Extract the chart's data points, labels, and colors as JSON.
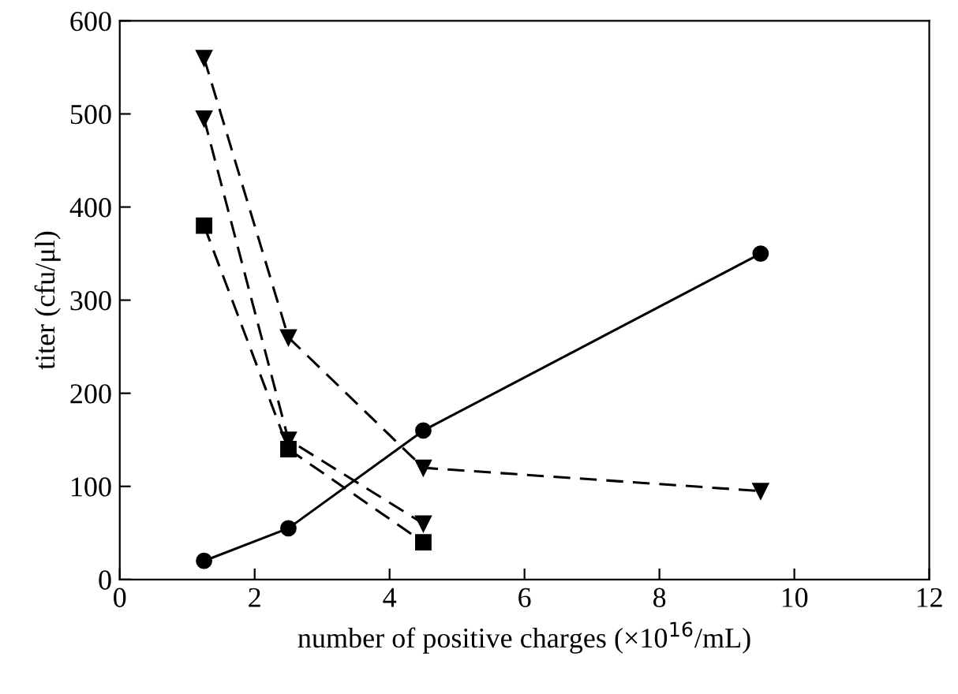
{
  "chart_data": {
    "type": "line",
    "xlabel": "number of positive charges (×10$^{16}$/mL)",
    "ylabel": "titer (cfu/μl)",
    "xlim": [
      0,
      12
    ],
    "xticks": [
      0,
      2,
      4,
      6,
      8,
      10,
      12
    ],
    "ylim": [
      0,
      600
    ],
    "yticks": [
      0,
      100,
      200,
      300,
      400,
      500,
      600
    ],
    "grid": false,
    "legend": false,
    "series": [
      {
        "x": [
          1.25,
          2.5,
          4.5,
          9.5
        ],
        "values": [
          20,
          55,
          160,
          350
        ],
        "color": "#000000",
        "marker": "circle",
        "line_style": "solid"
      },
      {
        "x": [
          1.25,
          2.5,
          4.5,
          9.5
        ],
        "values": [
          560,
          260,
          120,
          95
        ],
        "color": "#000000",
        "marker": "triangle",
        "line_style": "dashed"
      },
      {
        "x": [
          1.25,
          2.5,
          4.5
        ],
        "values": [
          495,
          150,
          60
        ],
        "color": "#000000",
        "marker": "triangle",
        "line_style": "dashed"
      },
      {
        "x": [
          1.25,
          2.5,
          4.5
        ],
        "values": [
          380,
          140,
          40
        ],
        "color": "#000000",
        "marker": "square",
        "line_style": "dashed"
      }
    ]
  }
}
